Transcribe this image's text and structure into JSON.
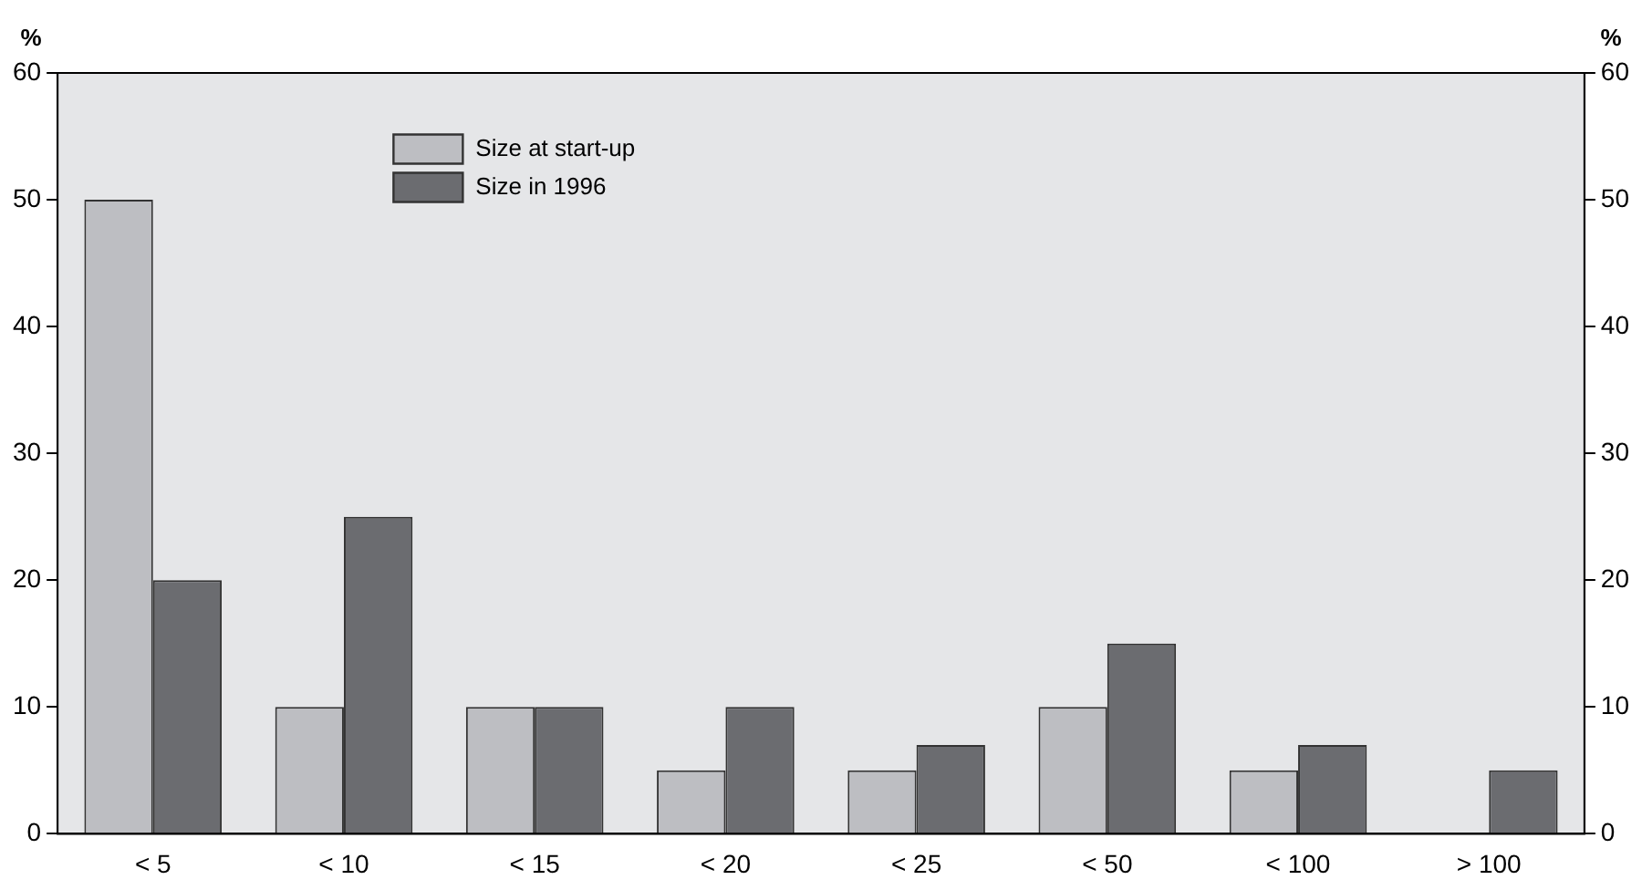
{
  "chart_data": {
    "type": "bar",
    "categories": [
      "< 5",
      "< 10",
      "< 15",
      "< 20",
      "< 25",
      "< 50",
      "< 100",
      "> 100"
    ],
    "series": [
      {
        "name": "Size at start-up",
        "color": "#bdbec2",
        "values": [
          50,
          10,
          10,
          5,
          5,
          10,
          5,
          0
        ]
      },
      {
        "name": "Size in 1996",
        "color": "#6b6c70",
        "values": [
          20,
          25,
          10,
          10,
          7,
          15,
          7,
          5
        ]
      }
    ],
    "ylabel": "%",
    "y2label": "%",
    "ylim": [
      0,
      60
    ],
    "yticks": [
      0,
      10,
      20,
      30,
      40,
      50,
      60
    ],
    "y2lim": [
      0,
      60
    ],
    "y2ticks": [
      0,
      10,
      20,
      30,
      40,
      50,
      60
    ],
    "legend": "top left",
    "grid": false
  }
}
